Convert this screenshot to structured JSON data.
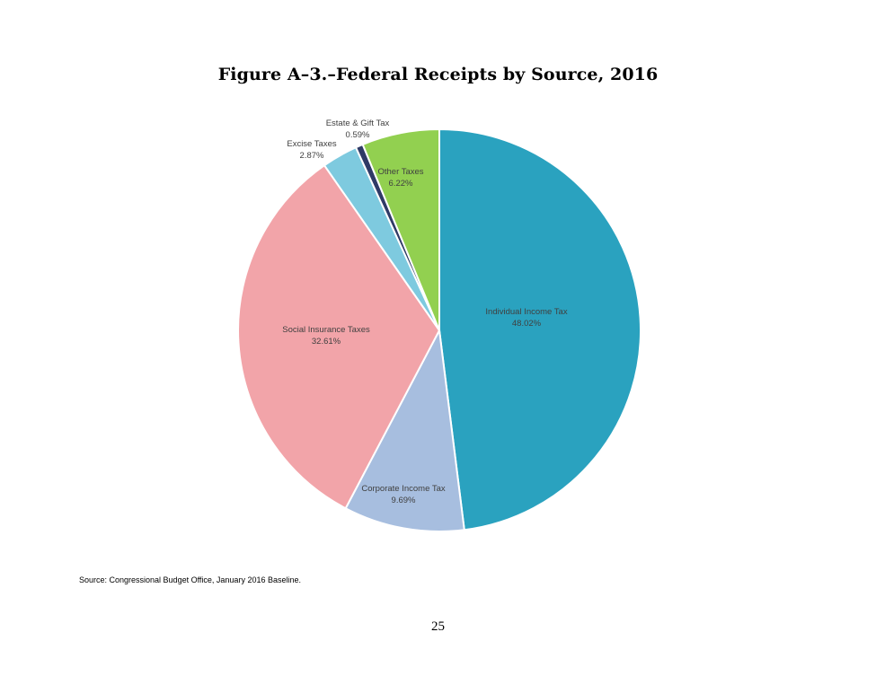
{
  "chart_data": {
    "type": "pie",
    "title": "Figure A–3.–Federal Receipts by Source, 2016",
    "slices": [
      {
        "label": "Individual Income Tax",
        "value": 48.02,
        "value_text": "48.02%",
        "color": "#2aa2bf"
      },
      {
        "label": "Corporate Income Tax",
        "value": 9.69,
        "value_text": "9.69%",
        "color": "#a7bedf"
      },
      {
        "label": "Social Insurance Taxes",
        "value": 32.61,
        "value_text": "32.61%",
        "color": "#f2a4a9"
      },
      {
        "label": "Excise Taxes",
        "value": 2.87,
        "value_text": "2.87%",
        "color": "#7ecadf"
      },
      {
        "label": "Estate & Gift Tax",
        "value": 0.59,
        "value_text": "0.59%",
        "color": "#2f3a66"
      },
      {
        "label": "Other Taxes",
        "value": 6.22,
        "value_text": "6.22%",
        "color": "#92d050"
      }
    ],
    "start_angle": "12 o'clock",
    "direction": "clockwise",
    "legend": "none (data labels on/next to slices)"
  },
  "source_note": "Source:  Congressional Budget Office, January 2016 Baseline.",
  "page_number": "25"
}
